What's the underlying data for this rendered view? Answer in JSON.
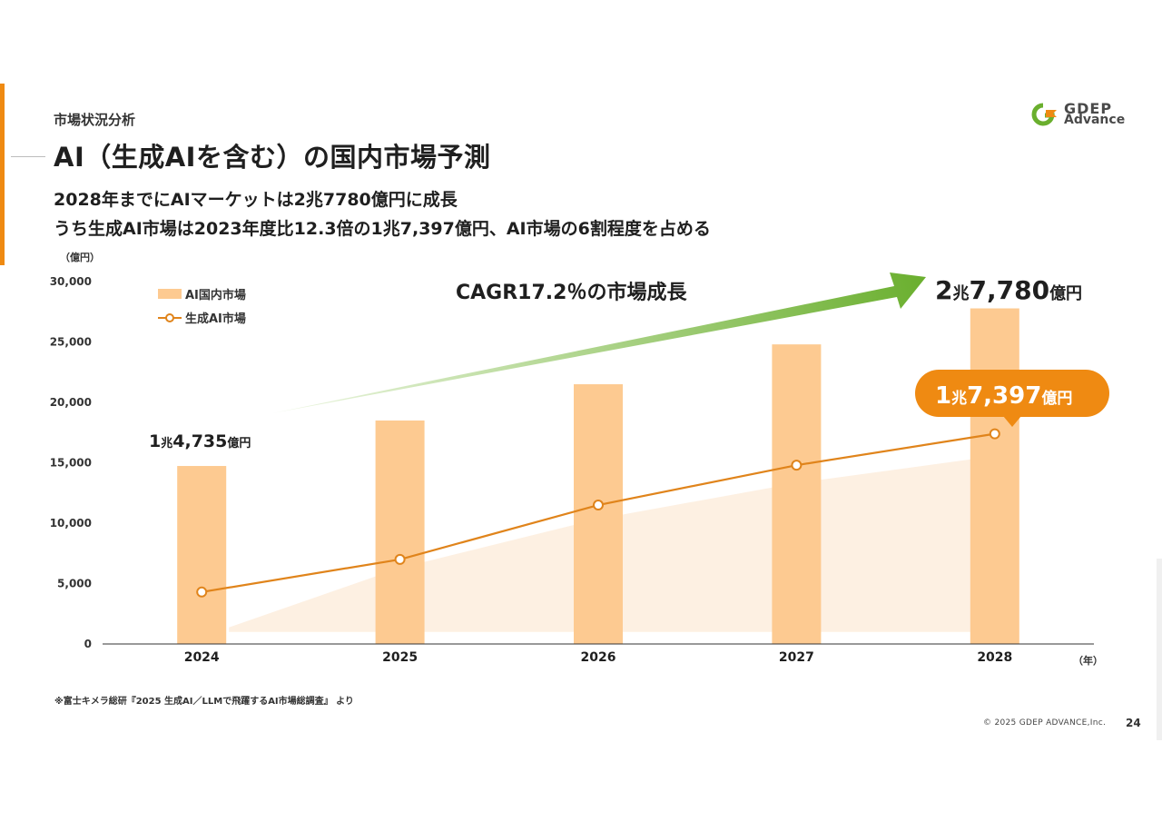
{
  "header": {
    "section_label": "市場状況分析",
    "title": "AI（生成AIを含む）の国内市場予測",
    "subtitle_line1": "2028年までにAIマーケットは2兆7780億円に成長",
    "subtitle_line2": "うち生成AI市場は2023年度比12.3倍の1兆7,397億円、AI市場の6割程度を占める"
  },
  "logo": {
    "line1": "GDEP",
    "line2": "Advance",
    "icon": "gdep-logo-icon"
  },
  "colors": {
    "bar": "#fdca91",
    "line": "#e0841b",
    "area": "#fdf0e2",
    "accent": "#ef8a12",
    "arrow_dark": "#6aaf2e",
    "arrow_light": "#e4f2d5",
    "callout": "#ef8a12"
  },
  "chart_data": {
    "type": "bar",
    "categories": [
      "2024",
      "2025",
      "2026",
      "2027",
      "2028"
    ],
    "series": [
      {
        "name": "AI国内市場",
        "type": "bar",
        "values": [
          14735,
          18500,
          21500,
          24800,
          27780
        ]
      },
      {
        "name": "生成AI市場",
        "type": "line",
        "values": [
          4300,
          7000,
          11500,
          14800,
          17397
        ]
      }
    ],
    "ylabel": "（億円）",
    "xlabel": "（年）",
    "ylim": [
      0,
      30000
    ],
    "yticks": [
      0,
      5000,
      10000,
      15000,
      20000,
      25000,
      30000
    ],
    "ytick_labels": [
      "0",
      "5,000",
      "10,000",
      "15,000",
      "20,000",
      "25,000",
      "30,000"
    ],
    "legend_position": "top-left",
    "grid": false,
    "annotations": {
      "cagr": "CAGR17.2％の市場成長",
      "start_value": {
        "n1": "1",
        "u1": "兆",
        "n2": "4,735",
        "u2": "億円"
      },
      "end_value": {
        "n1": "2",
        "u1": "兆",
        "n2": "7,780",
        "u2": "億円"
      },
      "gen_ai_value": {
        "n1": "1",
        "u1": "兆",
        "n2": "7,397",
        "u2": "億円"
      }
    }
  },
  "footer": {
    "source": "※富士キメラ総研『2025 生成AI／LLMで飛躍するAI市場総調査』 より",
    "copyright": "© 2025 GDEP ADVANCE,Inc.",
    "page_number": "24"
  }
}
